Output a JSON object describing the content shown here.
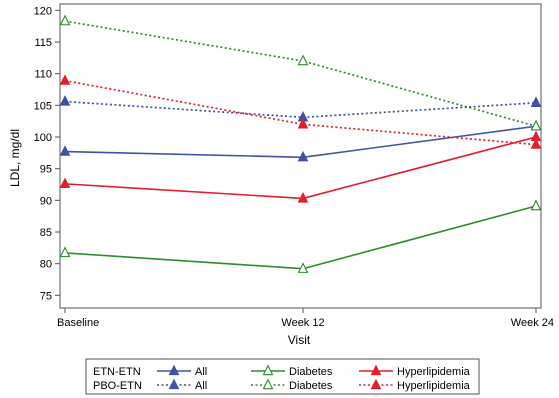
{
  "chart_data": {
    "type": "line",
    "xlabel": "Visit",
    "ylabel": "LDL, mg/dl",
    "categories": [
      "Baseline",
      "Week 12",
      "Week 24"
    ],
    "ylim": [
      73,
      121
    ],
    "yticks": [
      75,
      80,
      85,
      90,
      95,
      100,
      105,
      110,
      115,
      120
    ],
    "grid": false,
    "legend_position": "bottom",
    "legend_rows": [
      "ETN-ETN",
      "PBO-ETN"
    ],
    "legend_columns": [
      "All",
      "Diabetes",
      "Hyperlipidemia"
    ],
    "series": [
      {
        "group": "ETN-ETN",
        "subgroup": "All",
        "color": "#3f52a4",
        "line": "solid",
        "marker": "filled-triangle",
        "values": [
          97.7,
          96.8,
          101.7
        ]
      },
      {
        "group": "ETN-ETN",
        "subgroup": "Diabetes",
        "color": "#2e8b2e",
        "line": "solid",
        "marker": "open-triangle",
        "values": [
          81.7,
          79.2,
          89.1
        ]
      },
      {
        "group": "ETN-ETN",
        "subgroup": "Hyperlipidemia",
        "color": "#e0202c",
        "line": "solid",
        "marker": "filled-triangle",
        "values": [
          92.6,
          90.3,
          100.0
        ]
      },
      {
        "group": "PBO-ETN",
        "subgroup": "All",
        "color": "#3f52a4",
        "line": "dotted",
        "marker": "filled-triangle",
        "values": [
          105.6,
          103.1,
          105.4
        ]
      },
      {
        "group": "PBO-ETN",
        "subgroup": "Diabetes",
        "color": "#2e8b2e",
        "line": "dotted",
        "marker": "open-triangle",
        "values": [
          118.3,
          112.0,
          101.7
        ]
      },
      {
        "group": "PBO-ETN",
        "subgroup": "Hyperlipidemia",
        "color": "#e0202c",
        "line": "dotted",
        "marker": "filled-triangle",
        "values": [
          108.9,
          102.0,
          98.8
        ]
      }
    ]
  }
}
